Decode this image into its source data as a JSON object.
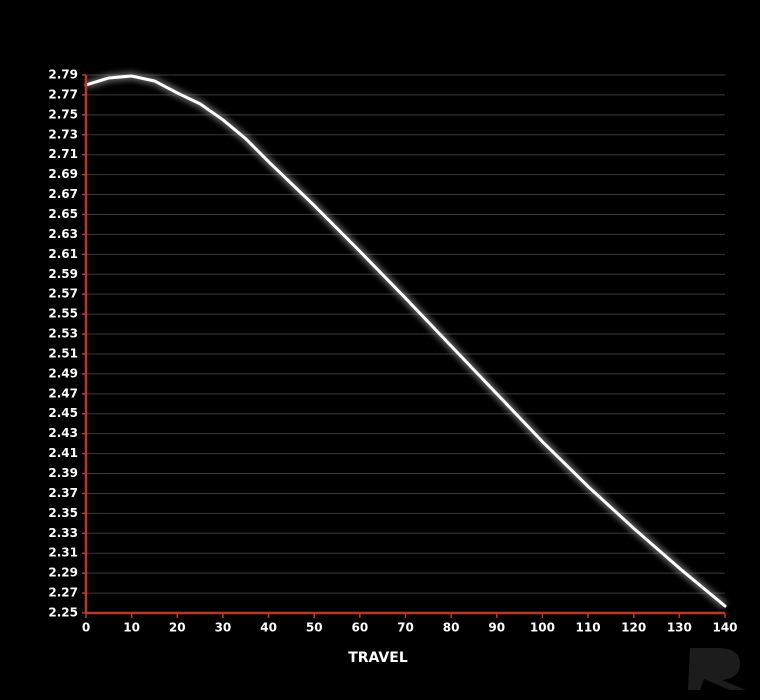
{
  "chart_data": {
    "type": "line",
    "x_label": "TRAVEL",
    "x": [
      0,
      5,
      10,
      15,
      20,
      25,
      30,
      35,
      40,
      50,
      60,
      70,
      80,
      90,
      100,
      110,
      120,
      130,
      140
    ],
    "series": [
      {
        "color": "#ffffff",
        "values": [
          2.78,
          2.787,
          2.789,
          2.784,
          2.772,
          2.761,
          2.745,
          2.726,
          2.703,
          2.659,
          2.613,
          2.566,
          2.518,
          2.47,
          2.422,
          2.377,
          2.335,
          2.295,
          2.257
        ]
      }
    ],
    "xlim": [
      0,
      140
    ],
    "xticks": [
      0,
      10,
      20,
      30,
      40,
      50,
      60,
      70,
      80,
      90,
      100,
      110,
      120,
      130,
      140
    ],
    "ylim": [
      2.25,
      2.79
    ],
    "yticks": [
      2.25,
      2.27,
      2.29,
      2.31,
      2.33,
      2.35,
      2.37,
      2.39,
      2.41,
      2.43,
      2.45,
      2.47,
      2.49,
      2.51,
      2.53,
      2.55,
      2.57,
      2.59,
      2.61,
      2.63,
      2.65,
      2.67,
      2.69,
      2.71,
      2.73,
      2.75,
      2.77,
      2.79
    ],
    "grid": true,
    "axis_color": "#b8392c"
  }
}
